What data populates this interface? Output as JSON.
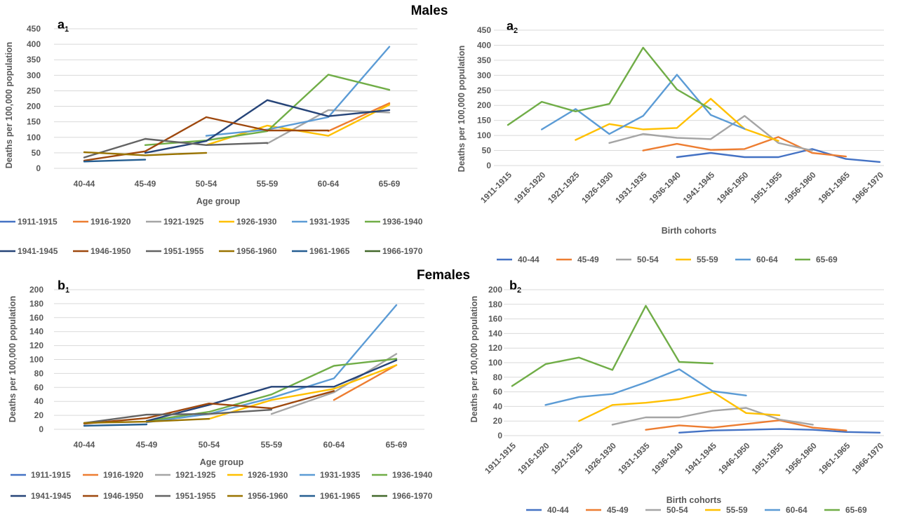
{
  "titles": {
    "males": "Males",
    "females": "Females"
  },
  "colors": {
    "1911-1915": "#4472c4",
    "1916-1920": "#ed7d31",
    "1921-1925": "#a5a5a5",
    "1926-1930": "#ffc000",
    "1931-1935": "#5b9bd5",
    "1936-1940": "#70ad47",
    "1941-1945": "#264478",
    "1946-1950": "#9e480e",
    "1951-1955": "#636363",
    "1956-1960": "#997300",
    "1961-1965": "#255e91",
    "1966-1970": "#43682b",
    "40-44": "#4472c4",
    "45-49": "#ed7d31",
    "50-54": "#a5a5a5",
    "55-59": "#ffc000",
    "60-64": "#5b9bd5",
    "65-69": "#70ad47"
  },
  "chart_data": [
    {
      "id": "a1",
      "panel_label": "a",
      "panel_sub": "1",
      "type": "line",
      "ylabel": "Deaths per 100,000 population",
      "xlabel": "Age group",
      "ylim": [
        0,
        450
      ],
      "yticks": [
        0,
        50,
        100,
        150,
        200,
        250,
        300,
        350,
        400,
        450
      ],
      "categories": [
        "40-44",
        "45-49",
        "50-54",
        "55-59",
        "60-64",
        "65-69"
      ],
      "legend_position": "bottom",
      "series": [
        {
          "name": "1911-1915",
          "values": [
            null,
            null,
            null,
            null,
            null,
            null
          ]
        },
        {
          "name": "1916-1920",
          "values": [
            null,
            null,
            null,
            null,
            120,
            210
          ]
        },
        {
          "name": "1921-1925",
          "values": [
            null,
            null,
            null,
            80,
            188,
            180
          ]
        },
        {
          "name": "1926-1930",
          "values": [
            null,
            null,
            75,
            138,
            105,
            205
          ]
        },
        {
          "name": "1931-1935",
          "values": [
            null,
            null,
            105,
            125,
            165,
            392
          ]
        },
        {
          "name": "1936-1940",
          "values": [
            null,
            75,
            90,
            120,
            302,
            253
          ]
        },
        {
          "name": "1941-1945",
          "values": [
            null,
            50,
            88,
            220,
            168,
            188
          ]
        },
        {
          "name": "1946-1950",
          "values": [
            25,
            55,
            165,
            122,
            122,
            null
          ]
        },
        {
          "name": "1951-1955",
          "values": [
            35,
            95,
            75,
            82,
            null,
            null
          ]
        },
        {
          "name": "1956-1960",
          "values": [
            52,
            42,
            50,
            null,
            null,
            null
          ]
        },
        {
          "name": "1961-1965",
          "values": [
            22,
            28,
            null,
            null,
            null,
            null
          ]
        },
        {
          "name": "1966-1970",
          "values": [
            null,
            null,
            null,
            null,
            null,
            null
          ]
        }
      ]
    },
    {
      "id": "a2",
      "panel_label": "a",
      "panel_sub": "2",
      "type": "line",
      "ylabel": "Deaths per 100,000 population",
      "xlabel": "Birth cohorts",
      "ylim": [
        0,
        450
      ],
      "yticks": [
        0,
        50,
        100,
        150,
        200,
        250,
        300,
        350,
        400,
        450
      ],
      "categories": [
        "1911-1915",
        "1916-1920",
        "1921-1925",
        "1926-1930",
        "1931-1935",
        "1936-1940",
        "1941-1945",
        "1946-1950",
        "1951-1955",
        "1956-1960",
        "1961-1965",
        "1966-1970"
      ],
      "legend_position": "bottom",
      "series": [
        {
          "name": "40-44",
          "values": [
            null,
            null,
            null,
            null,
            null,
            28,
            42,
            28,
            28,
            55,
            22,
            12
          ]
        },
        {
          "name": "45-49",
          "values": [
            null,
            null,
            null,
            null,
            50,
            72,
            52,
            55,
            95,
            42,
            30,
            null
          ]
        },
        {
          "name": "50-54",
          "values": [
            null,
            null,
            null,
            75,
            105,
            92,
            88,
            165,
            75,
            50,
            null,
            null
          ]
        },
        {
          "name": "55-59",
          "values": [
            null,
            null,
            85,
            138,
            120,
            125,
            222,
            122,
            82,
            null,
            null,
            null
          ]
        },
        {
          "name": "60-64",
          "values": [
            null,
            120,
            188,
            105,
            165,
            302,
            168,
            122,
            null,
            null,
            null,
            null
          ]
        },
        {
          "name": "65-69",
          "values": [
            135,
            212,
            180,
            205,
            392,
            253,
            188,
            null,
            null,
            null,
            null,
            null
          ]
        }
      ]
    },
    {
      "id": "b1",
      "panel_label": "b",
      "panel_sub": "1",
      "type": "line",
      "ylabel": "Deaths per 100,000 population",
      "xlabel": "Age group",
      "ylim": [
        0,
        200
      ],
      "yticks": [
        0,
        20,
        40,
        60,
        80,
        100,
        120,
        140,
        160,
        180,
        200
      ],
      "categories": [
        "40-44",
        "45-49",
        "50-54",
        "55-59",
        "60-64",
        "65-69"
      ],
      "legend_position": "bottom",
      "series": [
        {
          "name": "1911-1915",
          "values": [
            null,
            null,
            null,
            null,
            null,
            null
          ]
        },
        {
          "name": "1916-1920",
          "values": [
            null,
            null,
            null,
            null,
            42,
            92
          ]
        },
        {
          "name": "1921-1925",
          "values": [
            null,
            null,
            null,
            22,
            53,
            108
          ]
        },
        {
          "name": "1926-1930",
          "values": [
            null,
            null,
            15,
            42,
            58,
            92
          ]
        },
        {
          "name": "1931-1935",
          "values": [
            null,
            10,
            22,
            45,
            73,
            178
          ]
        },
        {
          "name": "1936-1940",
          "values": [
            null,
            12,
            25,
            50,
            91,
            101
          ]
        },
        {
          "name": "1941-1945",
          "values": [
            null,
            12,
            35,
            61,
            61,
            99
          ]
        },
        {
          "name": "1946-1950",
          "values": [
            8,
            16,
            37,
            30,
            55,
            null
          ]
        },
        {
          "name": "1951-1955",
          "values": [
            9,
            21,
            22,
            28,
            null,
            null
          ]
        },
        {
          "name": "1956-1960",
          "values": [
            9,
            11,
            15,
            null,
            null,
            null
          ]
        },
        {
          "name": "1961-1965",
          "values": [
            5,
            7,
            null,
            null,
            null,
            null
          ]
        },
        {
          "name": "1966-1970",
          "values": [
            null,
            null,
            null,
            null,
            null,
            null
          ]
        }
      ]
    },
    {
      "id": "b2",
      "panel_label": "b",
      "panel_sub": "2",
      "type": "line",
      "ylabel": "Deaths per 100,000 population",
      "xlabel": "Birth cohorts",
      "ylim": [
        0,
        200
      ],
      "yticks": [
        0,
        20,
        40,
        60,
        80,
        100,
        120,
        140,
        160,
        180,
        200
      ],
      "categories": [
        "1911-1915",
        "1916-1920",
        "1921-1925",
        "1926-1930",
        "1931-1935",
        "1936-1940",
        "1941-1945",
        "1946-1950",
        "1951-1955",
        "1956-1960",
        "1961-1965",
        "1966-1970"
      ],
      "legend_position": "bottom",
      "series": [
        {
          "name": "40-44",
          "values": [
            null,
            null,
            null,
            null,
            null,
            4,
            7,
            8,
            9,
            8,
            5,
            4
          ]
        },
        {
          "name": "45-49",
          "values": [
            null,
            null,
            null,
            null,
            8,
            14,
            11,
            16,
            21,
            11,
            7,
            null
          ]
        },
        {
          "name": "50-54",
          "values": [
            null,
            null,
            null,
            15,
            25,
            25,
            34,
            38,
            22,
            15,
            null,
            null
          ]
        },
        {
          "name": "55-59",
          "values": [
            null,
            null,
            20,
            42,
            45,
            50,
            60,
            31,
            28,
            null,
            null,
            null
          ]
        },
        {
          "name": "60-64",
          "values": [
            null,
            42,
            53,
            57,
            73,
            91,
            61,
            55,
            null,
            null,
            null,
            null
          ]
        },
        {
          "name": "65-69",
          "values": [
            68,
            98,
            107,
            90,
            178,
            101,
            99,
            null,
            null,
            null,
            null,
            null
          ]
        }
      ]
    }
  ]
}
